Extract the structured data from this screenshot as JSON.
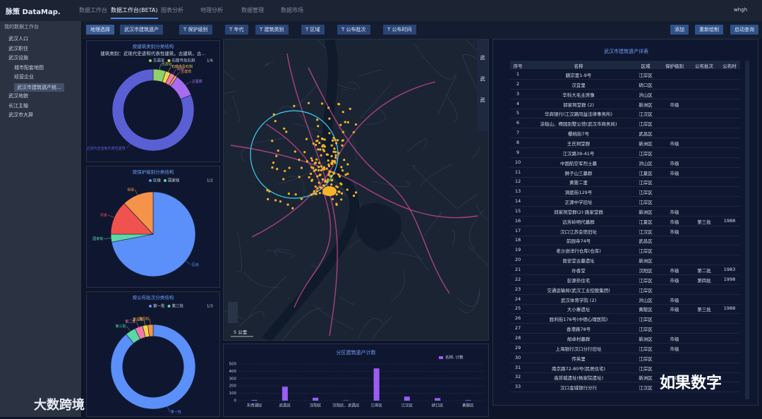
{
  "nav": {
    "logo": "脉策 DataMap.",
    "tabs": [
      "数据工作台",
      "数据工作台(BETA)",
      "图表分析",
      "地理分析",
      "数据管理",
      "数据市场"
    ],
    "user": "whgh"
  },
  "sidebar": {
    "title": "我的数据工作台",
    "items": [
      "武汉人口",
      "武汉职住",
      "武汉设施",
      "城市配套地图",
      "经营企业",
      "武汉市建筑遗产统...",
      "武汉地貌",
      "长江主轴",
      "武汉市大屏"
    ]
  },
  "toolbar": {
    "filters": [
      "地理选择",
      "武汉市建筑遗产",
      "T 保护级别",
      "T 年代",
      "T 建筑类别",
      "T 区域",
      "T 公布批次",
      "T 公布时间"
    ],
    "buttons": [
      "添加",
      "重新绘制",
      "启动查询"
    ]
  },
  "map": {
    "scale": "5 公里",
    "side_labels": [
      "武",
      "武",
      "武"
    ]
  },
  "chart_data": [
    {
      "type": "pie",
      "donut": true,
      "title": "按建筑类别分类结构",
      "subtitle": "建筑类别：近现代史迹和代表性建筑，古建筑，古...",
      "legend_page": "1/6",
      "categories": [
        "古遗址",
        "石窟寺及石刻",
        "其他",
        "古建筑",
        "古墓葬",
        "近现代史迹和代表性建筑"
      ],
      "values": [
        5,
        2,
        2,
        1,
        9,
        81
      ],
      "colors": [
        "#8fd16a",
        "#f5d24b",
        "#f07aa8",
        "#f2a65a",
        "#a86cf0",
        "#5a5fd4"
      ]
    },
    {
      "type": "pie",
      "donut": false,
      "title": "按保护级别分类结构",
      "legend_page": "1/2",
      "categories": [
        "区级",
        "国家级",
        "市级",
        "省级"
      ],
      "values": [
        72,
        3,
        13,
        12
      ],
      "colors": [
        "#5b8ff9",
        "#5ad8a6",
        "#f0524f",
        "#f5934a"
      ]
    },
    {
      "type": "pie",
      "donut": true,
      "title": "按公布批次分类结构",
      "legend_page": "1/3",
      "categories": [
        "第一批",
        "第三批",
        "第二批",
        "第五批",
        "第四批"
      ],
      "values": [
        89,
        4,
        3,
        2,
        2
      ],
      "colors": [
        "#5b8ff9",
        "#5ad8a6",
        "#f07aa8",
        "#f5d24b",
        "#f5934a"
      ]
    },
    {
      "type": "bar",
      "title": "分区建筑遗产计数",
      "legend": "名称: 计数",
      "categories": [
        "东西湖区",
        "武昌区",
        "汉阳区",
        "汉阳区、武昌区",
        "江岸区",
        "江汉区",
        "硚口区",
        "黄陂区"
      ],
      "values": [
        10,
        190,
        40,
        5,
        440,
        55,
        35,
        8
      ],
      "ylim": [
        0,
        500
      ],
      "yticks": [
        0,
        100,
        200,
        300,
        400,
        500
      ],
      "grid": true,
      "color": "#9b5cf5"
    }
  ],
  "table": {
    "title": "武汉市建筑遗产详表",
    "columns": [
      "序号",
      "名称",
      "区域",
      "保护级别",
      "公布批次",
      "公布时"
    ],
    "rows": [
      [
        "1",
        "膳宗里1-9号",
        "江岸区",
        null,
        null,
        null
      ],
      [
        "2",
        "汉宜里",
        "硚口区",
        null,
        null,
        null
      ],
      [
        "3",
        "华科大毛主席像",
        "洪山区",
        null,
        null,
        null
      ],
      [
        "4",
        "郭家祠堂群 (2)",
        "新洲区",
        "市级",
        null,
        null
      ],
      [
        "5",
        "华商银行(江汉路同益法律事务所)",
        "江汉区",
        null,
        null,
        null
      ],
      [
        "6",
        "涂轱山、樗园别墅公馆(武汉市商务局)",
        "江岸区",
        null,
        null,
        null
      ],
      [
        "7",
        "樱桃街7号",
        "武昌区",
        null,
        null,
        null
      ],
      [
        "8",
        "王氏祠堂群",
        "新洲区",
        "市级",
        null,
        null
      ],
      [
        "9",
        "江汉路39-41号",
        "江岸区",
        null,
        null,
        null
      ],
      [
        "10",
        "中国航空军烈士墓",
        "洪山区",
        "市级",
        null,
        null
      ],
      [
        "11",
        "狮子山三墓群",
        "江夏区",
        "市级",
        null,
        null
      ],
      [
        "12",
        "黄陂二里",
        "江岸区",
        null,
        null,
        null
      ],
      [
        "13",
        "洞庭街129号",
        "江岸区",
        null,
        null,
        null
      ],
      [
        "14",
        "正源中学旧址",
        "江岸区",
        null,
        null,
        null
      ],
      [
        "15",
        "邱家祠堂群(2)·路家堂群",
        "新洲区",
        "市级",
        null,
        null
      ],
      [
        "16",
        "远芳岭明代墓群",
        "江夏区",
        "市级",
        "第三批",
        "1988"
      ],
      [
        "17",
        "汉口江苏会馆旧址",
        "江汉区",
        "市级",
        null,
        null
      ],
      [
        "18",
        "前园寺74号",
        "武昌区",
        null,
        null,
        null
      ],
      [
        "19",
        "老沙逊洋行仓库(仓库)",
        "江岸区",
        null,
        null,
        null
      ],
      [
        "20",
        "晋安堂古墓遗址",
        "新洲区",
        null,
        null,
        null
      ],
      [
        "21",
        "孙香堂",
        "汉阳区",
        "市级",
        "第二批",
        "1983"
      ],
      [
        "22",
        "彭源奈住宅",
        "江岸区",
        "市级",
        "第四批",
        "1998"
      ],
      [
        "23",
        "交通运输局(武汉工业控股集团)",
        "江岸区",
        null,
        null,
        null
      ],
      [
        "24",
        "武汉体育学院 (2)",
        "洪山区",
        "市级",
        null,
        null
      ],
      [
        "25",
        "大小寨遗址",
        "黄陂区",
        "市级",
        "第三批",
        "1988"
      ],
      [
        "26",
        "胜利街176号(中德心理医院)",
        "江岸区",
        null,
        null,
        null
      ],
      [
        "27",
        "香港路78号",
        "江岸区",
        null,
        null,
        null
      ],
      [
        "28",
        "胡卓村墓群",
        "新洲区",
        "市级",
        null,
        null
      ],
      [
        "29",
        "上海银行汉口分行旧址",
        "江岸区",
        "市级",
        null,
        null
      ],
      [
        "30",
        "传英里",
        "江岸区",
        null,
        null,
        null
      ],
      [
        "31",
        "南京路72-80号(民居住宅)",
        "江岸区",
        null,
        null,
        null
      ],
      [
        "32",
        "庙郊城遗址(杨家院遗址)",
        "新洲区",
        "市级",
        null,
        null
      ],
      [
        "33",
        "汉口金城银行分行",
        "江汉区",
        null,
        null,
        null
      ]
    ]
  },
  "watermarks": [
    "如果数字",
    "大数跨境"
  ]
}
